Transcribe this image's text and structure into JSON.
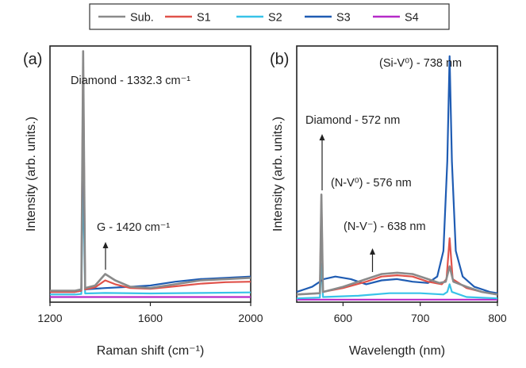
{
  "legend": [
    {
      "name": "Sub.",
      "color": "#8a8a8a"
    },
    {
      "name": "S1",
      "color": "#e0524a"
    },
    {
      "name": "S2",
      "color": "#38c3e8"
    },
    {
      "name": "S3",
      "color": "#1f5cb3"
    },
    {
      "name": "S4",
      "color": "#b62ac8"
    }
  ],
  "chart_data": [
    {
      "panel": "(a)",
      "type": "line",
      "xlabel": "Raman shift (cm⁻¹)",
      "ylabel": "Intensity (arb. units.)",
      "xlim": [
        1200,
        2000
      ],
      "ylim": [
        0,
        1.0
      ],
      "xticks": [
        "1200",
        "1600",
        "2000"
      ],
      "yticks_shown": false,
      "annotations": [
        {
          "text": "Diamond - 1332.3 cm⁻¹",
          "x": 1332.3
        },
        {
          "text": "G - 1420 cm⁻¹",
          "x": 1420,
          "arrow": true
        }
      ],
      "series": [
        {
          "name": "Sub.",
          "points": [
            [
              1200,
              0.045
            ],
            [
              1300,
              0.045
            ],
            [
              1325,
              0.05
            ],
            [
              1332.3,
              0.98
            ],
            [
              1340,
              0.055
            ],
            [
              1380,
              0.065
            ],
            [
              1420,
              0.11
            ],
            [
              1460,
              0.085
            ],
            [
              1520,
              0.06
            ],
            [
              1600,
              0.055
            ],
            [
              1700,
              0.07
            ],
            [
              1800,
              0.085
            ],
            [
              1900,
              0.09
            ],
            [
              2000,
              0.095
            ]
          ]
        },
        {
          "name": "S1",
          "points": [
            [
              1200,
              0.04
            ],
            [
              1300,
              0.04
            ],
            [
              1325,
              0.045
            ],
            [
              1332.3,
              0.95
            ],
            [
              1340,
              0.05
            ],
            [
              1380,
              0.058
            ],
            [
              1420,
              0.085
            ],
            [
              1460,
              0.07
            ],
            [
              1520,
              0.055
            ],
            [
              1600,
              0.052
            ],
            [
              1700,
              0.062
            ],
            [
              1800,
              0.072
            ],
            [
              1900,
              0.078
            ],
            [
              2000,
              0.08
            ]
          ]
        },
        {
          "name": "S2",
          "points": [
            [
              1200,
              0.03
            ],
            [
              1300,
              0.03
            ],
            [
              1325,
              0.032
            ],
            [
              1332.3,
              0.5
            ],
            [
              1340,
              0.034
            ],
            [
              1420,
              0.036
            ],
            [
              1600,
              0.034
            ],
            [
              1800,
              0.036
            ],
            [
              2000,
              0.038
            ]
          ]
        },
        {
          "name": "S3",
          "points": [
            [
              1200,
              0.04
            ],
            [
              1300,
              0.04
            ],
            [
              1325,
              0.045
            ],
            [
              1332.3,
              0.75
            ],
            [
              1340,
              0.05
            ],
            [
              1420,
              0.055
            ],
            [
              1520,
              0.06
            ],
            [
              1600,
              0.065
            ],
            [
              1700,
              0.08
            ],
            [
              1800,
              0.09
            ],
            [
              1900,
              0.095
            ],
            [
              2000,
              0.1
            ]
          ]
        },
        {
          "name": "S4",
          "points": [
            [
              1200,
              0.02
            ],
            [
              1332.3,
              0.02
            ],
            [
              2000,
              0.02
            ]
          ]
        }
      ]
    },
    {
      "panel": "(b)",
      "type": "line",
      "xlabel": "Wavelength (nm)",
      "ylabel": "Intensity (arb. units.)",
      "xlim": [
        540,
        800
      ],
      "ylim": [
        0,
        1.0
      ],
      "xticks": [
        "600",
        "700",
        "800"
      ],
      "yticks_shown": false,
      "annotations": [
        {
          "text": "(Si-V⁰) - 738 nm",
          "x": 738
        },
        {
          "text": "Diamond - 572 nm",
          "x": 572,
          "arrow": true
        },
        {
          "text": "(N-V⁰) - 576 nm",
          "x": 576
        },
        {
          "text": "(N-V⁻) - 638 nm",
          "x": 638,
          "arrow": true
        }
      ],
      "series": [
        {
          "name": "Sub.",
          "points": [
            [
              540,
              0.03
            ],
            [
              570,
              0.035
            ],
            [
              572,
              0.42
            ],
            [
              574,
              0.04
            ],
            [
              600,
              0.06
            ],
            [
              630,
              0.09
            ],
            [
              650,
              0.11
            ],
            [
              670,
              0.115
            ],
            [
              690,
              0.11
            ],
            [
              710,
              0.09
            ],
            [
              725,
              0.075
            ],
            [
              733,
              0.08
            ],
            [
              738,
              0.14
            ],
            [
              743,
              0.08
            ],
            [
              760,
              0.06
            ],
            [
              780,
              0.04
            ],
            [
              800,
              0.03
            ]
          ]
        },
        {
          "name": "S1",
          "points": [
            [
              540,
              0.03
            ],
            [
              570,
              0.035
            ],
            [
              572,
              0.4
            ],
            [
              574,
              0.04
            ],
            [
              600,
              0.055
            ],
            [
              630,
              0.08
            ],
            [
              650,
              0.1
            ],
            [
              670,
              0.105
            ],
            [
              690,
              0.1
            ],
            [
              710,
              0.08
            ],
            [
              728,
              0.07
            ],
            [
              734,
              0.09
            ],
            [
              738,
              0.25
            ],
            [
              742,
              0.09
            ],
            [
              760,
              0.055
            ],
            [
              780,
              0.04
            ],
            [
              800,
              0.03
            ]
          ]
        },
        {
          "name": "S2",
          "points": [
            [
              540,
              0.015
            ],
            [
              570,
              0.018
            ],
            [
              572,
              0.15
            ],
            [
              574,
              0.02
            ],
            [
              620,
              0.025
            ],
            [
              660,
              0.035
            ],
            [
              700,
              0.035
            ],
            [
              730,
              0.03
            ],
            [
              735,
              0.04
            ],
            [
              738,
              0.07
            ],
            [
              741,
              0.04
            ],
            [
              760,
              0.02
            ],
            [
              800,
              0.015
            ]
          ]
        },
        {
          "name": "S3",
          "points": [
            [
              540,
              0.04
            ],
            [
              560,
              0.06
            ],
            [
              575,
              0.09
            ],
            [
              590,
              0.1
            ],
            [
              610,
              0.09
            ],
            [
              630,
              0.07
            ],
            [
              650,
              0.085
            ],
            [
              670,
              0.09
            ],
            [
              690,
              0.08
            ],
            [
              710,
              0.075
            ],
            [
              722,
              0.1
            ],
            [
              730,
              0.2
            ],
            [
              735,
              0.55
            ],
            [
              738,
              0.96
            ],
            [
              741,
              0.55
            ],
            [
              746,
              0.2
            ],
            [
              755,
              0.1
            ],
            [
              770,
              0.06
            ],
            [
              790,
              0.04
            ],
            [
              800,
              0.035
            ]
          ]
        },
        {
          "name": "S4",
          "points": [
            [
              540,
              0.01
            ],
            [
              738,
              0.01
            ],
            [
              800,
              0.01
            ]
          ]
        }
      ]
    }
  ]
}
